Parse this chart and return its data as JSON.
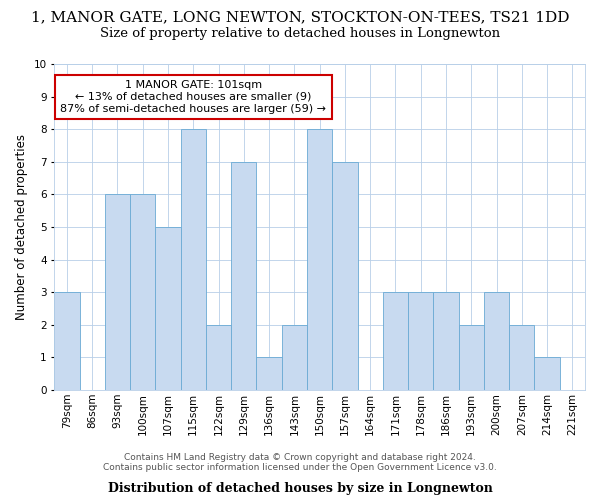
{
  "title": "1, MANOR GATE, LONG NEWTON, STOCKTON-ON-TEES, TS21 1DD",
  "subtitle": "Size of property relative to detached houses in Longnewton",
  "xlabel": "Distribution of detached houses by size in Longnewton",
  "ylabel": "Number of detached properties",
  "categories": [
    "79sqm",
    "86sqm",
    "93sqm",
    "100sqm",
    "107sqm",
    "115sqm",
    "122sqm",
    "129sqm",
    "136sqm",
    "143sqm",
    "150sqm",
    "157sqm",
    "164sqm",
    "171sqm",
    "178sqm",
    "186sqm",
    "193sqm",
    "200sqm",
    "207sqm",
    "214sqm",
    "221sqm"
  ],
  "values": [
    3,
    0,
    6,
    6,
    5,
    8,
    2,
    7,
    1,
    2,
    8,
    7,
    0,
    3,
    3,
    3,
    2,
    3,
    2,
    1,
    0
  ],
  "bar_color": "#c8daf0",
  "bar_edge_color": "#6aaad4",
  "highlight_box_line1": "1 MANOR GATE: 101sqm",
  "highlight_box_line2": "← 13% of detached houses are smaller (9)",
  "highlight_box_line3": "87% of semi-detached houses are larger (59) →",
  "highlight_box_edge_color": "#cc0000",
  "ylim": [
    0,
    10
  ],
  "yticks": [
    0,
    1,
    2,
    3,
    4,
    5,
    6,
    7,
    8,
    9,
    10
  ],
  "footer_line1": "Contains HM Land Registry data © Crown copyright and database right 2024.",
  "footer_line2": "Contains public sector information licensed under the Open Government Licence v3.0.",
  "bg_color": "#ffffff",
  "grid_color": "#b8cfe8",
  "title_fontsize": 11,
  "subtitle_fontsize": 9.5,
  "xlabel_fontsize": 9,
  "ylabel_fontsize": 8.5,
  "tick_fontsize": 7.5,
  "annotation_fontsize": 8,
  "footer_fontsize": 6.5
}
